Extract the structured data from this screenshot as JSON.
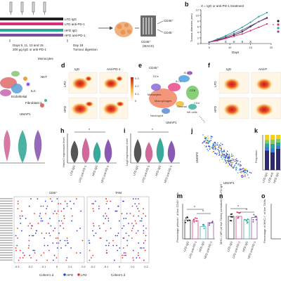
{
  "colors": {
    "lfd_igg": "#1f1f1f",
    "lfd_anti": "#d62e79",
    "hfd_igg": "#2aa59a",
    "hfd_anti": "#7b4ea0",
    "hfd_points": "#2b3fd6",
    "lfd_points": "#e8302b",
    "heat_red": "#d7261e",
    "heat_yellow": "#f5c04a"
  },
  "panel_a": {
    "label": "a",
    "groups": [
      "LFD IgG",
      "LFD anti-PD-1",
      "HFD IgG",
      "HFD anti-PD-1"
    ],
    "timeline": [
      "Days 9, 11, 13 and 15",
      "200 μg IgG or anti-PD-1"
    ],
    "day18": [
      "Day 18",
      "Tumour digestion"
    ],
    "macs": [
      "CD45⁺",
      "(MACS)"
    ],
    "fractions": [
      "CD45⁺",
      "CD45⁻"
    ]
  },
  "panel_b": {
    "label": "b",
    "title": "X = IgG or anti-PD-1 treatment",
    "ylabel": "Tumour diameter (mm)",
    "xlabel": "Days",
    "xticks": [
      "5",
      "10",
      "15",
      "20"
    ],
    "yticks": [
      "0",
      "2",
      "4",
      "6",
      "8",
      "10",
      "12"
    ]
  },
  "panel_c": {
    "labels": [
      "Monocytes",
      "NKT",
      "Endothelial",
      "ILC",
      "Fibroblast 2"
    ],
    "umap_label": "UMAP1"
  },
  "panel_d": {
    "label": "d",
    "cols": [
      "IgG",
      "Anti-PD-1"
    ],
    "rows": [
      "LFD",
      "HFD"
    ],
    "scale": [
      "0.3",
      "0.2",
      "0.1",
      "0"
    ]
  },
  "panel_e": {
    "label": "e",
    "title": "CD45⁺",
    "clusters": [
      "DCs",
      "B cells",
      "ILCs",
      "Monocytes",
      "Macrophages",
      "CD8",
      "Stromal",
      "NK cells",
      "Neutrophil",
      "CD4"
    ],
    "xlabel": "UMAP1"
  },
  "panel_f": {
    "label": "f",
    "cols": [
      "IgG",
      "Anti-P"
    ],
    "rows": [
      "LFD",
      "HFD"
    ]
  },
  "panel_h": {
    "label": "h",
    "ylabel": "Havcr2 expression level",
    "sig": "*",
    "groups": [
      "LFD IgG",
      "LFD anti-PD-1",
      "HFD IgG",
      "HFD anti-PD-1"
    ]
  },
  "panel_i": {
    "label": "i",
    "ylabel": "Lag3 expression level",
    "sig": "*",
    "groups": [
      "LFD IgG",
      "LFD anti-PD-1",
      "HFD IgG",
      "HFD anti-PD-1"
    ]
  },
  "panel_j": {
    "label": "j",
    "ylabel": "UMAP2",
    "xlabel": "UMAP1"
  },
  "panel_k": {
    "label": "k",
    "ylabel": "Proportion",
    "yticks": [
      "0",
      "0.2",
      "0.4",
      "0.6",
      "0.8",
      "1.0"
    ],
    "groups": [
      "LFD IgG",
      "LFD anti",
      "HFD IgG"
    ]
  },
  "panel_l": {
    "titles": [
      "CD8⁺",
      "TAM"
    ],
    "xlabel": "Cohen's d",
    "xticks": [
      "-0.3",
      "-0.2",
      "-0.1",
      "0",
      "0.1",
      "0.2"
    ],
    "xticks2": [
      "-0.2",
      "-0.1",
      "0",
      "0.1",
      "0.2"
    ],
    "legend": [
      "HFD",
      "LFD"
    ]
  },
  "panel_m": {
    "label": "m",
    "ylabel": "Percentage pHrodo⁺ of live CD45⁺ cells",
    "groups": [
      "LFD IgG",
      "LFD anti-PD-1",
      "HFD IgG",
      "HFD anti-PD-1"
    ],
    "sig": [
      "*",
      "*"
    ]
  },
  "panel_n": {
    "label": "n",
    "ylabel": "MHC-I MFI (of live TAMs) normalized to LFD IgG",
    "groups": [
      "LFD IgG",
      "LFD anti-PD-1",
      "HFD IgG",
      "HFD anti-PD-1"
    ],
    "sig": [
      "*",
      "*"
    ]
  },
  "panel_o": {
    "label": "o",
    "ylabel": "Percentage of MHC-I⁺ of live TAMs"
  },
  "chart_data": [
    {
      "type": "line",
      "x": [
        5,
        7,
        9,
        11,
        13,
        15,
        17,
        19
      ],
      "series": [
        {
          "name": "LFD IgG",
          "values": [
            0.5,
            1.2,
            2.0,
            3.0,
            4.2,
            6.0,
            7.8,
            9.2
          ]
        },
        {
          "name": "LFD anti-PD-1",
          "values": [
            0.5,
            1.0,
            1.8,
            2.6,
            3.4,
            4.6,
            5.8,
            7.0
          ]
        },
        {
          "name": "HFD IgG",
          "values": [
            0.5,
            1.6,
            2.8,
            4.2,
            5.8,
            7.6,
            9.6,
            11.0
          ]
        },
        {
          "name": "HFD anti-PD-1",
          "values": [
            0.5,
            1.4,
            2.4,
            3.5,
            4.8,
            6.3,
            7.8,
            9.0
          ]
        }
      ],
      "ylim": [
        0,
        12
      ],
      "xlim": [
        3,
        20
      ],
      "treatment_days": [
        9,
        11,
        13,
        15
      ]
    },
    {
      "type": "bar",
      "categories": [
        "LFD IgG",
        "LFD anti",
        "HFD IgG"
      ],
      "series": [
        {
          "name": "s1",
          "values": [
            0.55,
            0.5,
            0.6
          ]
        },
        {
          "name": "s2",
          "values": [
            0.1,
            0.12,
            0.08
          ]
        },
        {
          "name": "s3",
          "values": [
            0.1,
            0.12,
            0.1
          ]
        },
        {
          "name": "s4",
          "values": [
            0.1,
            0.12,
            0.1
          ]
        },
        {
          "name": "s5",
          "values": [
            0.15,
            0.14,
            0.12
          ]
        }
      ],
      "ylim": [
        0,
        1.0
      ]
    },
    {
      "type": "bar",
      "categories": [
        "LFD IgG",
        "LFD anti-PD-1",
        "HFD IgG",
        "HFD anti-PD-1"
      ],
      "values": [
        28,
        27,
        18,
        24
      ],
      "ylim": [
        0,
        50
      ]
    },
    {
      "type": "bar",
      "categories": [
        "LFD IgG",
        "LFD anti-PD-1",
        "HFD IgG",
        "HFD anti-PD-1"
      ],
      "values": [
        1.0,
        1.0,
        0.85,
        0.95
      ],
      "ylim": [
        0,
        1.5
      ]
    }
  ]
}
